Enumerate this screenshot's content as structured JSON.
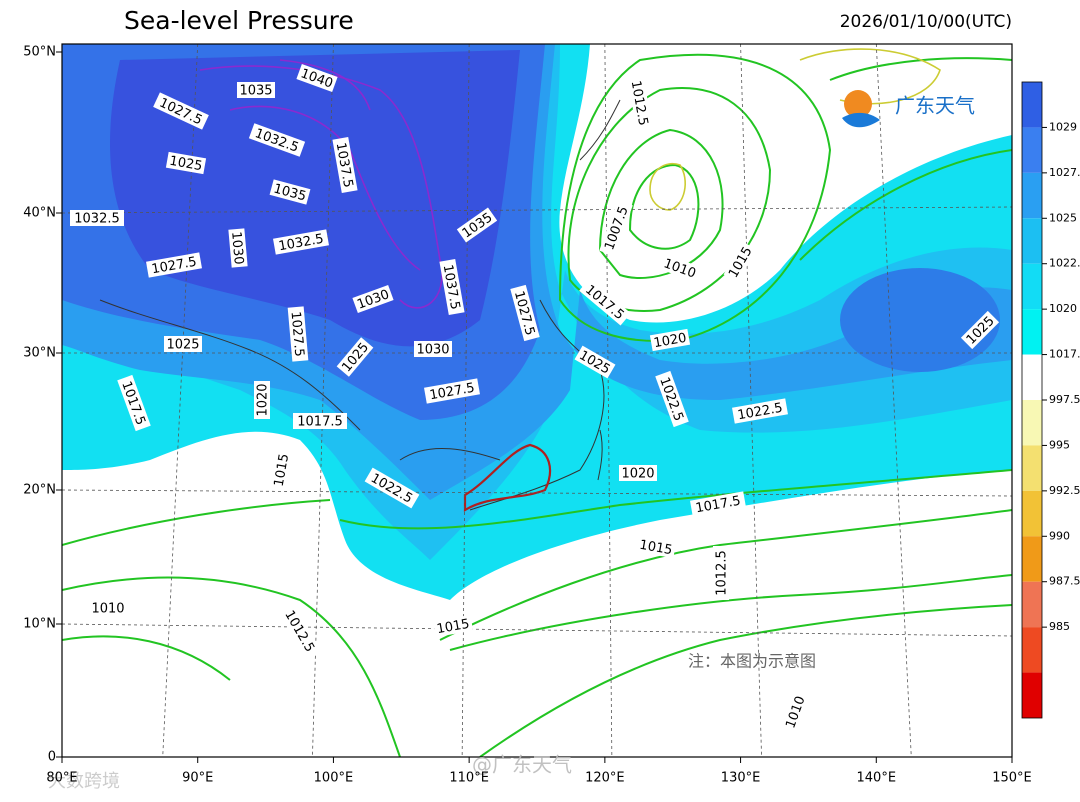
{
  "header": {
    "title": "Sea-level Pressure",
    "timestamp": "2026/01/10/00(UTC)"
  },
  "map": {
    "lat_labels": [
      "50°N",
      "40°N",
      "30°N",
      "20°N",
      "10°N",
      "0"
    ],
    "lon_labels": [
      "80°E",
      "90°E",
      "100°E",
      "110°E",
      "120°E",
      "130°E",
      "140°E",
      "150°E"
    ],
    "contour_labels": [
      "1040",
      "1035",
      "1027.5",
      "1032.5",
      "1025",
      "1037.5",
      "1035",
      "1032.5",
      "1030",
      "1032.5",
      "1035",
      "1027.5",
      "1037.5",
      "1030",
      "1027.5",
      "1025",
      "1027.5",
      "1025",
      "1030",
      "1025",
      "1027.5",
      "1017.5",
      "1020",
      "1017.5",
      "1022.5",
      "1015",
      "1020",
      "1022.5",
      "1022.5",
      "1017.5",
      "1015",
      "1012.5",
      "1010",
      "1012.5",
      "1015",
      "1010",
      "1012.5",
      "1007.5",
      "1010",
      "1015",
      "1017.5",
      "1020",
      "1025"
    ]
  },
  "colorbar": {
    "labels": [
      "1029",
      "1027.",
      "1025",
      "1022.",
      "1020",
      "1017.",
      "997.5",
      "995",
      "992.5",
      "990",
      "987.5",
      "985"
    ]
  },
  "note": "注：本图为示意图",
  "logo": "广东天气",
  "watermarks": [
    "@广东天气",
    "大数跨境"
  ]
}
